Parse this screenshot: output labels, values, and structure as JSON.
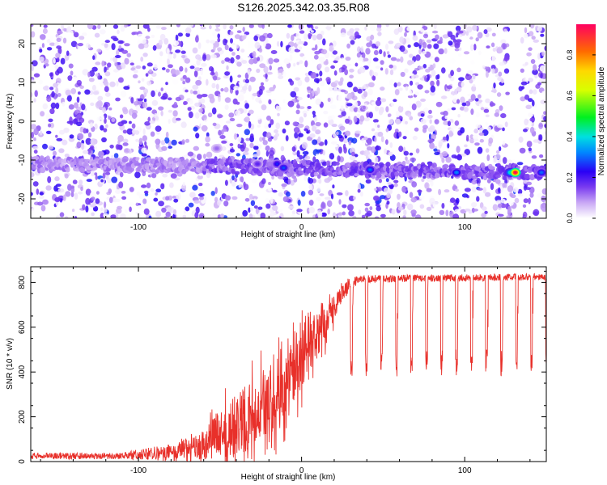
{
  "page_title": "S126.2025.342.03.35.R08",
  "chart_data": [
    {
      "type": "heatmap",
      "title": "S126.2025.342.03.35.R08",
      "xlabel": "Height of straight line (km)",
      "ylabel": "Frequency (Hz)",
      "xlim": [
        -166,
        150
      ],
      "ylim": [
        -25,
        25
      ],
      "xticks": [
        -100,
        0,
        100
      ],
      "yticks": [
        -20,
        -10,
        0,
        10,
        20
      ],
      "ridge": {
        "description_free_params": true,
        "freq_at_x": [
          [
            -166,
            -11.0
          ],
          [
            -60,
            -11.5
          ],
          [
            0,
            -12.2
          ],
          [
            60,
            -12.6
          ],
          [
            150,
            -13.2
          ]
        ],
        "hotspots": [
          {
            "x": -52,
            "freq": -7,
            "amp": 0.12
          },
          {
            "x": -27,
            "freq": -11,
            "amp": 0.18
          },
          {
            "x": -15,
            "freq": -11,
            "amp": 0.25
          },
          {
            "x": -11,
            "freq": -12,
            "amp": 0.28
          },
          {
            "x": 42,
            "freq": -12.5,
            "amp": 0.3
          },
          {
            "x": 95,
            "freq": -13.2,
            "amp": 0.32
          },
          {
            "x": 128,
            "freq": -13.2,
            "amp": 0.42
          },
          {
            "x": 131,
            "freq": -13.2,
            "amp": 0.95
          },
          {
            "x": 147,
            "freq": -13.2,
            "amp": 0.3
          }
        ]
      },
      "colorbar": {
        "label": "Normalized spectral amplitude",
        "range": [
          0.0,
          0.95
        ],
        "ticks": [
          0.0,
          0.2,
          0.4,
          0.6,
          0.8
        ],
        "tick_labels": [
          "0.0",
          "0.2",
          "0.4",
          "0.6",
          "0.8"
        ]
      }
    },
    {
      "type": "line",
      "xlabel": "Height of straight line (km)",
      "ylabel": "SNR (10 * v/v)",
      "xlim": [
        -166,
        150
      ],
      "ylim": [
        0,
        870
      ],
      "xticks": [
        -100,
        0,
        100
      ],
      "yticks": [
        0,
        200,
        400,
        600,
        800
      ],
      "series": [
        {
          "name": "SNR",
          "color": "#e8302a",
          "envelope": [
            {
              "x": -166,
              "base": 25,
              "noise": 18
            },
            {
              "x": -110,
              "base": 25,
              "noise": 18
            },
            {
              "x": -95,
              "base": 35,
              "noise": 35
            },
            {
              "x": -75,
              "base": 45,
              "noise": 60
            },
            {
              "x": -60,
              "base": 80,
              "noise": 130
            },
            {
              "x": -45,
              "base": 160,
              "noise": 260
            },
            {
              "x": -30,
              "base": 230,
              "noise": 320
            },
            {
              "x": -15,
              "base": 320,
              "noise": 320
            },
            {
              "x": -5,
              "base": 420,
              "noise": 280
            },
            {
              "x": 5,
              "base": 520,
              "noise": 230
            },
            {
              "x": 15,
              "base": 630,
              "noise": 150
            },
            {
              "x": 25,
              "base": 760,
              "noise": 70
            },
            {
              "x": 35,
              "base": 815,
              "noise": 35
            },
            {
              "x": 150,
              "base": 825,
              "noise": 30
            }
          ],
          "dropouts": {
            "start_x": 30,
            "spacing_km": 9.2,
            "level": 380
          }
        }
      ]
    }
  ]
}
